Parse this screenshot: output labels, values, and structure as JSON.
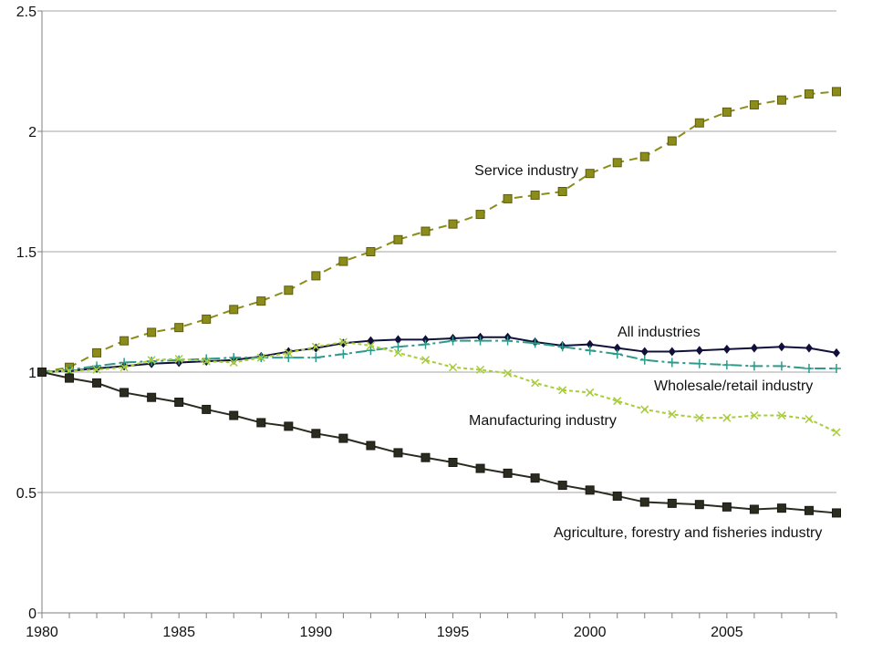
{
  "chart_data": {
    "type": "line",
    "title": "",
    "xlabel": "",
    "ylabel": "",
    "xlim": [
      1980,
      2009
    ],
    "ylim": [
      0,
      2.5
    ],
    "grid": true,
    "legend": "none (series labeled directly on the plot)",
    "x_tick_labels": [
      "1980",
      "1985",
      "1990",
      "1995",
      "2000",
      "2005"
    ],
    "y_tick_labels": [
      "0",
      "0.5",
      "1",
      "1.5",
      "2",
      "2.5"
    ],
    "x_ticks": [
      1980,
      1985,
      1990,
      1995,
      2000,
      2005
    ],
    "y_ticks": [
      0,
      0.5,
      1,
      1.5,
      2,
      2.5
    ],
    "x": [
      1980,
      1981,
      1982,
      1983,
      1984,
      1985,
      1986,
      1987,
      1988,
      1989,
      1990,
      1991,
      1992,
      1993,
      1994,
      1995,
      1996,
      1997,
      1998,
      1999,
      2000,
      2001,
      2002,
      2003,
      2004,
      2005,
      2006,
      2007,
      2008,
      2009
    ],
    "series": [
      {
        "name": "Service industry",
        "color": "#8c8c1a",
        "marker": "square",
        "dash": "dashed",
        "values": [
          1.0,
          1.02,
          1.08,
          1.13,
          1.165,
          1.185,
          1.22,
          1.26,
          1.295,
          1.34,
          1.4,
          1.46,
          1.5,
          1.55,
          1.585,
          1.615,
          1.655,
          1.72,
          1.735,
          1.75,
          1.825,
          1.87,
          1.895,
          1.96,
          2.035,
          2.08,
          2.11,
          2.13,
          2.155,
          2.165
        ]
      },
      {
        "name": "All industries",
        "color": "#10103a",
        "marker": "diamond",
        "dash": "solid",
        "values": [
          1.0,
          1.005,
          1.015,
          1.025,
          1.035,
          1.04,
          1.045,
          1.05,
          1.065,
          1.085,
          1.1,
          1.12,
          1.13,
          1.135,
          1.135,
          1.14,
          1.145,
          1.145,
          1.125,
          1.11,
          1.115,
          1.1,
          1.085,
          1.085,
          1.09,
          1.095,
          1.1,
          1.105,
          1.1,
          1.08
        ]
      },
      {
        "name": "Wholesale/retail industry",
        "color": "#2e9a8a",
        "marker": "plus",
        "dash": "dashdot",
        "values": [
          1.0,
          1.01,
          1.025,
          1.04,
          1.045,
          1.05,
          1.055,
          1.06,
          1.06,
          1.06,
          1.06,
          1.075,
          1.09,
          1.105,
          1.115,
          1.13,
          1.13,
          1.13,
          1.12,
          1.105,
          1.09,
          1.075,
          1.05,
          1.04,
          1.035,
          1.03,
          1.025,
          1.025,
          1.015,
          1.015
        ]
      },
      {
        "name": "Manufacturing industry",
        "color": "#a8cc3a",
        "marker": "x",
        "dash": "dotted",
        "values": [
          1.0,
          1.005,
          1.01,
          1.02,
          1.05,
          1.055,
          1.045,
          1.04,
          1.06,
          1.08,
          1.105,
          1.125,
          1.11,
          1.08,
          1.05,
          1.02,
          1.01,
          0.995,
          0.955,
          0.925,
          0.915,
          0.88,
          0.845,
          0.825,
          0.81,
          0.81,
          0.82,
          0.82,
          0.805,
          0.75
        ]
      },
      {
        "name": "Agriculture, forestry and fisheries industry",
        "color": "#2b2b20",
        "marker": "square",
        "dash": "solid",
        "values": [
          1.0,
          0.975,
          0.955,
          0.915,
          0.895,
          0.875,
          0.845,
          0.82,
          0.79,
          0.775,
          0.745,
          0.725,
          0.695,
          0.665,
          0.645,
          0.625,
          0.6,
          0.58,
          0.56,
          0.53,
          0.51,
          0.485,
          0.46,
          0.455,
          0.45,
          0.44,
          0.43,
          0.435,
          0.425,
          0.415
        ]
      }
    ],
    "annotations": [
      {
        "series": 0,
        "text": "Service industry",
        "anchor": "end"
      },
      {
        "series": 1,
        "text": "All  industries",
        "anchor": "start"
      },
      {
        "series": 2,
        "text": "Wholesale/retail industry",
        "anchor": "start"
      },
      {
        "series": 3,
        "text": "Manufacturing industry",
        "anchor": "start"
      },
      {
        "series": 4,
        "text": "Agriculture, forestry and fisheries industry",
        "anchor": "start"
      }
    ]
  }
}
